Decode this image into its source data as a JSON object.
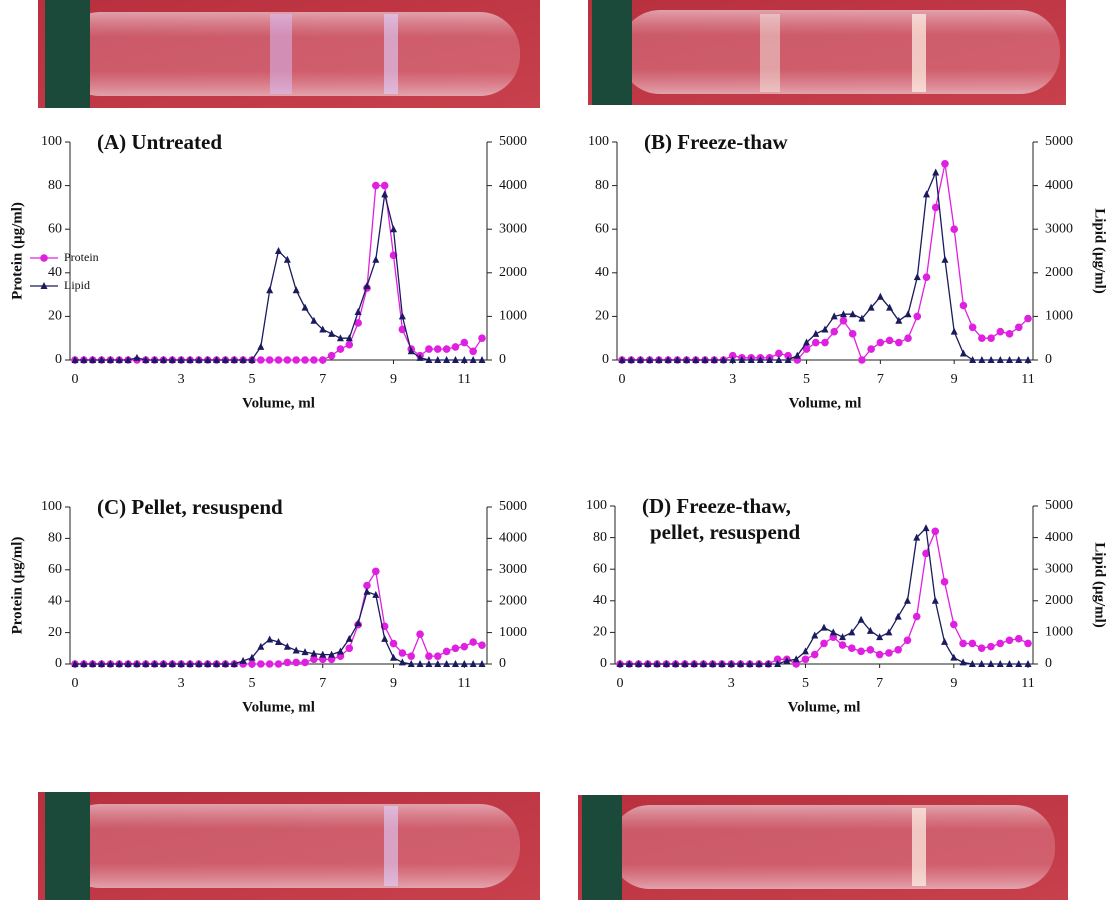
{
  "chart_data": [
    {
      "type": "line",
      "title": "(A) Untreated",
      "xlabel": "Volume, ml",
      "ylabel": "Protein (μg/ml)",
      "x": [
        0,
        0.25,
        0.5,
        0.75,
        1,
        1.25,
        1.5,
        1.75,
        2,
        2.25,
        2.5,
        2.75,
        3,
        3.25,
        3.5,
        3.75,
        4,
        4.25,
        4.5,
        4.75,
        5,
        5.25,
        5.5,
        5.75,
        6,
        6.25,
        6.5,
        6.75,
        7,
        7.25,
        7.5,
        7.75,
        8,
        8.25,
        8.5,
        8.75,
        9,
        9.25,
        9.5,
        9.75,
        10,
        10.25,
        10.5,
        10.75,
        11,
        11.25,
        11.5
      ],
      "xlim": [
        0,
        11.5
      ],
      "xticks": [
        0,
        3,
        5,
        7,
        9,
        11
      ],
      "ylim": [
        0,
        100
      ],
      "yticks": [
        0,
        20,
        40,
        60,
        80,
        100
      ],
      "y2lim": [
        0,
        5000
      ],
      "y2ticks": [
        0,
        1000,
        2000,
        3000,
        4000,
        5000
      ],
      "legend": "left",
      "series": [
        {
          "name": "Protein",
          "color": "#e020e0",
          "marker": "circle",
          "values": [
            0,
            0,
            0,
            0,
            0,
            0,
            0,
            0,
            0,
            0,
            0,
            0,
            0,
            0,
            0,
            0,
            0,
            0,
            0,
            0,
            0,
            0,
            0,
            0,
            0,
            0,
            0,
            0,
            0,
            2,
            5,
            7,
            17,
            33,
            80,
            80,
            48,
            14,
            5,
            2,
            5,
            5,
            5,
            6,
            8,
            4,
            10
          ]
        },
        {
          "name": "Lipid",
          "color": "#1a1a5e",
          "marker": "triangle",
          "axis": "y2",
          "values": [
            0,
            0,
            0,
            0,
            0,
            0,
            0,
            50,
            0,
            0,
            0,
            0,
            0,
            0,
            0,
            0,
            0,
            0,
            0,
            0,
            0,
            300,
            1600,
            2500,
            2300,
            1600,
            1200,
            900,
            700,
            600,
            500,
            500,
            1100,
            1700,
            2300,
            3800,
            3000,
            1000,
            200,
            50,
            0,
            0,
            0,
            0,
            0,
            0,
            0
          ]
        }
      ]
    },
    {
      "type": "line",
      "title": "(B) Freeze-thaw",
      "xlabel": "Volume, ml",
      "y2label": "Lipid (μg/ml)",
      "x": [
        0,
        0.25,
        0.5,
        0.75,
        1,
        1.25,
        1.5,
        1.75,
        2,
        2.25,
        2.5,
        2.75,
        3,
        3.25,
        3.5,
        3.75,
        4,
        4.25,
        4.5,
        4.75,
        5,
        5.25,
        5.5,
        5.75,
        6,
        6.25,
        6.5,
        6.75,
        7,
        7.25,
        7.5,
        7.75,
        8,
        8.25,
        8.5,
        8.75,
        9,
        9.25,
        9.5,
        9.75,
        10,
        10.25,
        10.5,
        10.75,
        11
      ],
      "xlim": [
        0,
        11
      ],
      "xticks": [
        0,
        3,
        5,
        7,
        9,
        11
      ],
      "ylim": [
        0,
        100
      ],
      "yticks": [
        0,
        20,
        40,
        60,
        80,
        100
      ],
      "y2lim": [
        0,
        5000
      ],
      "y2ticks": [
        0,
        1000,
        2000,
        3000,
        4000,
        5000
      ],
      "series": [
        {
          "color": "#e020e0",
          "marker": "circle",
          "values": [
            0,
            0,
            0,
            0,
            0,
            0,
            0,
            0,
            0,
            0,
            0,
            0,
            2,
            1,
            1,
            1,
            1,
            3,
            2,
            0,
            5,
            8,
            8,
            13,
            18,
            12,
            0,
            5,
            8,
            9,
            8,
            10,
            20,
            38,
            70,
            90,
            60,
            25,
            15,
            10,
            10,
            13,
            12,
            15,
            19
          ]
        },
        {
          "color": "#1a1a5e",
          "marker": "triangle",
          "axis": "y2",
          "values": [
            0,
            0,
            0,
            0,
            0,
            0,
            0,
            0,
            0,
            0,
            0,
            0,
            0,
            0,
            0,
            0,
            0,
            0,
            0,
            100,
            400,
            600,
            700,
            1000,
            1050,
            1050,
            950,
            1200,
            1450,
            1200,
            900,
            1050,
            1900,
            3800,
            4300,
            2300,
            650,
            150,
            0,
            0,
            0,
            0,
            0,
            0,
            0
          ]
        }
      ]
    },
    {
      "type": "line",
      "title": "(C) Pellet, resuspend",
      "xlabel": "Volume, ml",
      "ylabel": "Protein (μg/ml)",
      "x": [
        0,
        0.25,
        0.5,
        0.75,
        1,
        1.25,
        1.5,
        1.75,
        2,
        2.25,
        2.5,
        2.75,
        3,
        3.25,
        3.5,
        3.75,
        4,
        4.25,
        4.5,
        4.75,
        5,
        5.25,
        5.5,
        5.75,
        6,
        6.25,
        6.5,
        6.75,
        7,
        7.25,
        7.5,
        7.75,
        8,
        8.25,
        8.5,
        8.75,
        9,
        9.25,
        9.5,
        9.75,
        10,
        10.25,
        10.5,
        10.75,
        11,
        11.25,
        11.5
      ],
      "xlim": [
        0,
        11.5
      ],
      "xticks": [
        0,
        3,
        5,
        7,
        9,
        11
      ],
      "ylim": [
        0,
        100
      ],
      "yticks": [
        0,
        20,
        40,
        60,
        80,
        100
      ],
      "y2lim": [
        0,
        5000
      ],
      "y2ticks": [
        0,
        1000,
        2000,
        3000,
        4000,
        5000
      ],
      "series": [
        {
          "color": "#e020e0",
          "marker": "circle",
          "values": [
            0,
            0,
            0,
            0,
            0,
            0,
            0,
            0,
            0,
            0,
            0,
            0,
            0,
            0,
            0,
            0,
            0,
            0,
            0,
            0,
            0,
            0,
            0,
            0,
            1,
            1,
            1,
            3,
            3,
            3,
            5,
            10,
            25,
            50,
            59,
            24,
            13,
            7,
            5,
            19,
            5,
            5,
            8,
            10,
            11,
            14,
            12
          ]
        },
        {
          "color": "#1a1a5e",
          "marker": "triangle",
          "axis": "y2",
          "values": [
            0,
            0,
            0,
            0,
            0,
            0,
            0,
            0,
            0,
            0,
            0,
            0,
            0,
            0,
            0,
            0,
            0,
            0,
            0,
            100,
            200,
            550,
            780,
            700,
            550,
            430,
            380,
            330,
            300,
            300,
            400,
            800,
            1300,
            2300,
            2200,
            800,
            200,
            50,
            0,
            0,
            0,
            0,
            0,
            0,
            0,
            0,
            0
          ]
        }
      ]
    },
    {
      "type": "line",
      "title": [
        "(D) Freeze-thaw,",
        "pellet, resuspend"
      ],
      "xlabel": "Volume, ml",
      "y2label": "Lipid (μg/ml)",
      "x": [
        0,
        0.25,
        0.5,
        0.75,
        1,
        1.25,
        1.5,
        1.75,
        2,
        2.25,
        2.5,
        2.75,
        3,
        3.25,
        3.5,
        3.75,
        4,
        4.25,
        4.5,
        4.75,
        5,
        5.25,
        5.5,
        5.75,
        6,
        6.25,
        6.5,
        6.75,
        7,
        7.25,
        7.5,
        7.75,
        8,
        8.25,
        8.5,
        8.75,
        9,
        9.25,
        9.5,
        9.75,
        10,
        10.25,
        10.5,
        10.75,
        11
      ],
      "xlim": [
        0,
        11
      ],
      "xticks": [
        0,
        3,
        5,
        7,
        9,
        11
      ],
      "ylim": [
        0,
        100
      ],
      "yticks": [
        0,
        20,
        40,
        60,
        80,
        100
      ],
      "y2lim": [
        0,
        5000
      ],
      "y2ticks": [
        0,
        1000,
        2000,
        3000,
        4000,
        5000
      ],
      "series": [
        {
          "color": "#e020e0",
          "marker": "circle",
          "values": [
            0,
            0,
            0,
            0,
            0,
            0,
            0,
            0,
            0,
            0,
            0,
            0,
            0,
            0,
            0,
            0,
            0,
            3,
            3,
            0,
            3,
            6,
            13,
            17,
            12,
            10,
            8,
            9,
            6,
            7,
            9,
            15,
            30,
            70,
            84,
            52,
            25,
            13,
            13,
            10,
            11,
            13,
            15,
            16,
            13
          ]
        },
        {
          "color": "#1a1a5e",
          "marker": "triangle",
          "axis": "y2",
          "values": [
            0,
            0,
            0,
            0,
            0,
            0,
            0,
            0,
            0,
            0,
            0,
            0,
            0,
            0,
            0,
            0,
            0,
            0,
            100,
            150,
            400,
            900,
            1150,
            1000,
            850,
            1000,
            1400,
            1050,
            850,
            1000,
            1500,
            2000,
            4000,
            4300,
            2000,
            700,
            200,
            50,
            0,
            0,
            0,
            0,
            0,
            0,
            0
          ]
        }
      ]
    }
  ]
}
